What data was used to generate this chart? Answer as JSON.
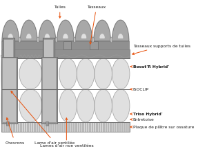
{
  "bg_color": "#ffffff",
  "arrow_color": "#E8500A",
  "gray_dark": "#696969",
  "gray_med": "#999999",
  "gray_light": "#C0C0C0",
  "gray_lightest": "#E0E0E0",
  "gray_strip": "#AAAAAA",
  "gray_plaster": "#B8B8B8",
  "n_tiles": 7,
  "tile_arch_color": "#A8A8A8",
  "tile_bar_color": "#909090",
  "spring_color": "#BBBBBB",
  "spring_edge_color": "#888888",
  "chevron_color": "#909090",
  "chevron_light": "#C8C8C8",
  "clip_color": "#808080",
  "labels_right": [
    {
      "text": "Boost'R Hybrid'",
      "bold": true,
      "ya": 0.605,
      "yt": 0.605
    },
    {
      "text": "ISOCLIP",
      "bold": false,
      "ya": 0.53,
      "yt": 0.53
    },
    {
      "text": "Triso Hybrid'",
      "bold": true,
      "ya": 0.45,
      "yt": 0.45
    },
    {
      "text": "Entretoise",
      "bold": false,
      "ya": 0.34,
      "yt": 0.34
    },
    {
      "text": "Plaque de plâtre sur ossature",
      "bold": false,
      "ya": 0.265,
      "yt": 0.265
    }
  ]
}
